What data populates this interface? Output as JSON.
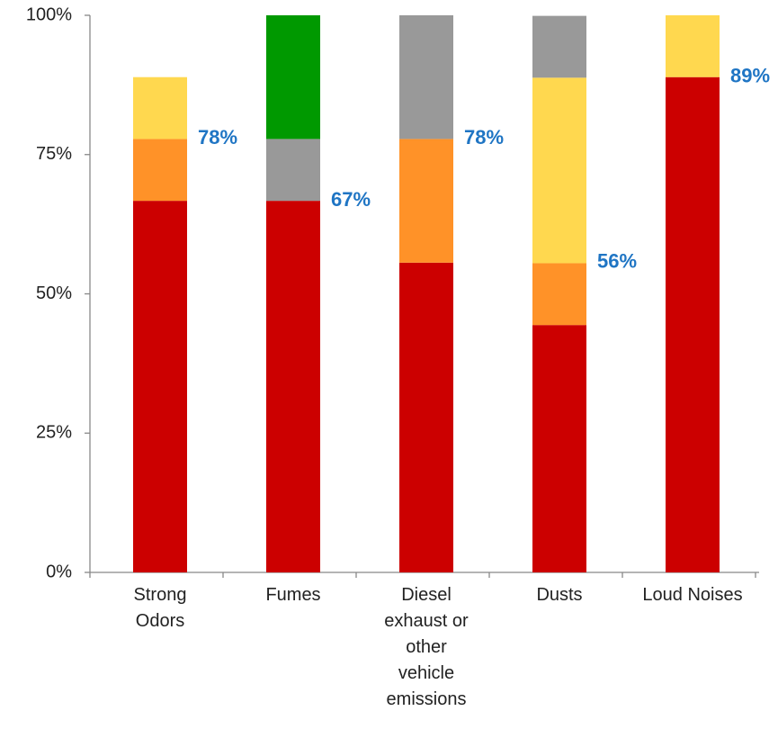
{
  "chart_data": {
    "type": "stacked_bar",
    "categories": [
      "Strong Odors",
      "Fumes",
      "Diesel exhaust or other vehicle emissions",
      "Dusts",
      "Loud Noises"
    ],
    "series": [
      {
        "color": "#cc0000",
        "values": [
          66.7,
          66.7,
          55.6,
          44.4,
          88.9
        ]
      },
      {
        "color": "#ff9228",
        "values": [
          11.1,
          null,
          22.2,
          11.1,
          null
        ]
      },
      {
        "color": "#ffd84f",
        "values": [
          11.1,
          null,
          null,
          33.3,
          11.1
        ]
      },
      {
        "color": "#999999",
        "values": [
          null,
          11.1,
          22.2,
          11.1,
          null
        ]
      },
      {
        "color": "#009900",
        "values": [
          null,
          22.2,
          null,
          null,
          null
        ]
      }
    ],
    "totals": {
      "color": "#1f75c4",
      "values": [
        77.8,
        66.7,
        77.8,
        55.6,
        88.9
      ],
      "value_labels": [
        "78%",
        "67%",
        "78%",
        "56%",
        "89%"
      ]
    },
    "ylim": [
      0,
      100
    ],
    "yticks": [
      {
        "value": 0,
        "label": "0%"
      },
      {
        "value": 25,
        "label": "25%"
      },
      {
        "value": 50,
        "label": "50%"
      },
      {
        "value": 75,
        "label": "75%"
      },
      {
        "value": 100,
        "label": "100%"
      }
    ],
    "grid": false
  }
}
